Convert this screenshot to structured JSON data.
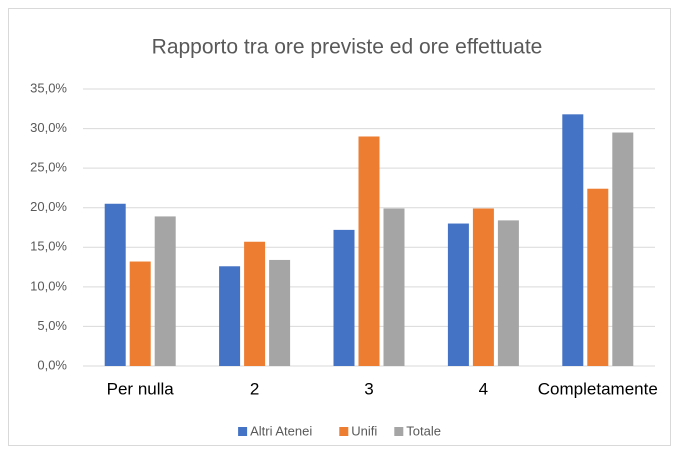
{
  "chart_data": {
    "type": "bar",
    "title": "Rapporto tra ore previste ed ore effettuate",
    "categories": [
      "Per nulla",
      "2",
      "3",
      "4",
      "Completamente"
    ],
    "series": [
      {
        "name": "Altri Atenei",
        "color": "#4472c4",
        "values": [
          20.5,
          12.6,
          17.2,
          18.0,
          31.8
        ]
      },
      {
        "name": "Unifi",
        "color": "#ed7d31",
        "values": [
          13.2,
          15.7,
          29.0,
          19.9,
          22.4
        ]
      },
      {
        "name": "Totale",
        "color": "#a5a5a5",
        "values": [
          18.9,
          13.4,
          19.9,
          18.4,
          29.5
        ]
      }
    ],
    "ylim": [
      0,
      35
    ],
    "yticks": [
      {
        "value": 0,
        "label": "0,0%"
      },
      {
        "value": 5,
        "label": "5,0%"
      },
      {
        "value": 10,
        "label": "10,0%"
      },
      {
        "value": 15,
        "label": "15,0%"
      },
      {
        "value": 20,
        "label": "20,0%"
      },
      {
        "value": 25,
        "label": "25,0%"
      },
      {
        "value": 30,
        "label": "30,0%"
      },
      {
        "value": 35,
        "label": "35,0%"
      }
    ],
    "grid": true,
    "legend": "bottom"
  }
}
